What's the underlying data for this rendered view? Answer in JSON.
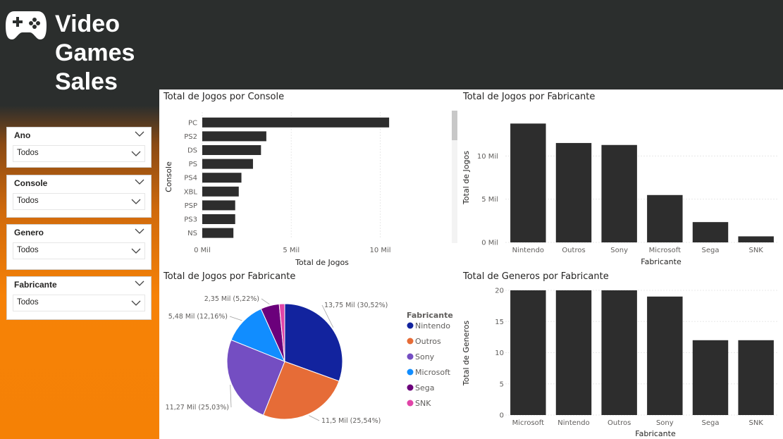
{
  "app": {
    "title_line1": "Video",
    "title_line2": "Games",
    "title_line3": "Sales",
    "logo_icon": "gamepad-icon"
  },
  "filters": [
    {
      "label": "Ano",
      "value": "Todos"
    },
    {
      "label": "Console",
      "value": "Todos"
    },
    {
      "label": "Genero",
      "value": "Todos"
    },
    {
      "label": "Fabricante",
      "value": "Todos"
    }
  ],
  "colors": {
    "bar": "#2d2d2d",
    "accent_orange": "#f58105",
    "dark_bg": "#2b2e2d"
  },
  "chart_data": [
    {
      "type": "bar",
      "orientation": "horizontal",
      "title": "Total de Jogos por Console",
      "xlabel": "Total de Jogos",
      "ylabel": "Console",
      "categories": [
        "PC",
        "PS2",
        "DS",
        "PS",
        "PS4",
        "XBL",
        "PSP",
        "PS3",
        "NS"
      ],
      "values": [
        10500,
        3600,
        3300,
        2850,
        2200,
        2050,
        1850,
        1850,
        1750
      ],
      "xlim": [
        0,
        12000
      ],
      "ticks": [
        {
          "value": 0,
          "label": "0 Mil"
        },
        {
          "value": 5000,
          "label": "5 Mil"
        },
        {
          "value": 10000,
          "label": "10 Mil"
        }
      ]
    },
    {
      "type": "bar",
      "title": "Total de Jogos por Fabricante",
      "xlabel": "Fabricante",
      "ylabel": "Total de Jogos",
      "categories": [
        "Nintendo",
        "Outros",
        "Sony",
        "Microsoft",
        "Sega",
        "SNK"
      ],
      "values": [
        13750,
        11500,
        11270,
        5480,
        2350,
        700
      ],
      "ylim": [
        0,
        15000
      ],
      "ticks": [
        {
          "value": 0,
          "label": "0 Mil"
        },
        {
          "value": 5000,
          "label": "5 Mil"
        },
        {
          "value": 10000,
          "label": "10 Mil"
        }
      ]
    },
    {
      "type": "pie",
      "title": "Total de Jogos por Fabricante",
      "legend_title": "Fabricante",
      "slices": [
        {
          "name": "Nintendo",
          "value": 30.52,
          "label": "13,75 Mil (30,52%)",
          "color": "#12239e"
        },
        {
          "name": "Outros",
          "value": 25.54,
          "label": "11,5 Mil (25,54%)",
          "color": "#e66c37"
        },
        {
          "name": "Sony",
          "value": 25.03,
          "label": "11,27 Mil (25,03%)",
          "color": "#744ec2"
        },
        {
          "name": "Microsoft",
          "value": 12.16,
          "label": "5,48 Mil (12,16%)",
          "color": "#118dff"
        },
        {
          "name": "Sega",
          "value": 5.22,
          "label": "2,35 Mil (5,22%)",
          "color": "#6b007b"
        },
        {
          "name": "SNK",
          "value": 1.53,
          "label": "",
          "color": "#e044a7"
        }
      ]
    },
    {
      "type": "bar",
      "title": "Total de Generos por Fabricante",
      "xlabel": "Fabricante",
      "ylabel": "Total de Generos",
      "categories": [
        "Microsoft",
        "Nintendo",
        "Outros",
        "Sony",
        "Sega",
        "SNK"
      ],
      "values": [
        20,
        20,
        20,
        19,
        12,
        12
      ],
      "ylim": [
        0,
        20
      ],
      "ticks": [
        {
          "value": 0,
          "label": "0"
        },
        {
          "value": 5,
          "label": "5"
        },
        {
          "value": 10,
          "label": "10"
        },
        {
          "value": 15,
          "label": "15"
        },
        {
          "value": 20,
          "label": "20"
        }
      ]
    }
  ]
}
